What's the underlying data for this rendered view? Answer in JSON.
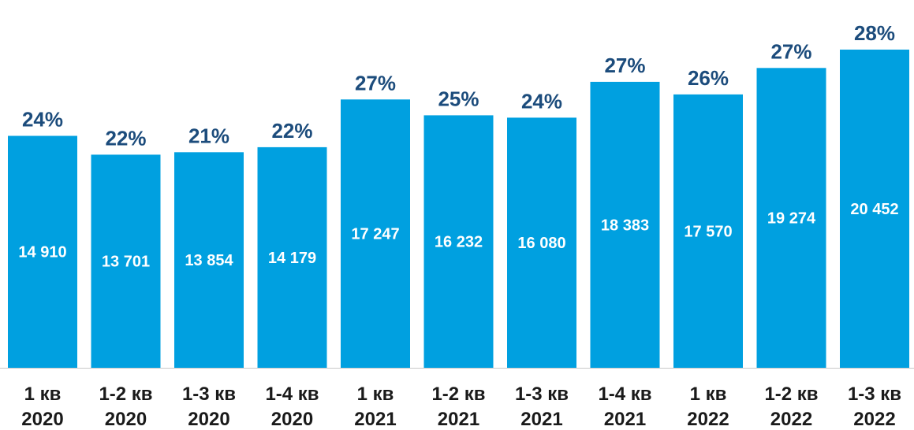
{
  "chart_data": {
    "type": "bar",
    "categories": [
      [
        "1 кв",
        "2020"
      ],
      [
        "1-2 кв",
        "2020"
      ],
      [
        "1-3 кв",
        "2020"
      ],
      [
        "1-4 кв",
        "2020"
      ],
      [
        "1 кв",
        "2021"
      ],
      [
        "1-2 кв",
        "2021"
      ],
      [
        "1-3 кв",
        "2021"
      ],
      [
        "1-4 кв",
        "2021"
      ],
      [
        "1 кв",
        "2022"
      ],
      [
        "1-2 кв",
        "2022"
      ],
      [
        "1-3 кв",
        "2022"
      ]
    ],
    "values": [
      14910,
      13701,
      13854,
      14179,
      17247,
      16232,
      16080,
      18383,
      17570,
      19274,
      20452
    ],
    "value_labels": [
      "14 910",
      "13 701",
      "13 854",
      "14 179",
      "17 247",
      "16 232",
      "16 080",
      "18 383",
      "17 570",
      "19 274",
      "20 452"
    ],
    "percent_labels": [
      "24%",
      "22%",
      "21%",
      "22%",
      "27%",
      "25%",
      "24%",
      "27%",
      "26%",
      "27%",
      "28%"
    ],
    "title": "",
    "xlabel": "",
    "ylabel": "",
    "ylim": [
      0,
      20452
    ],
    "grid": false,
    "legend": "none",
    "colors": {
      "bar": "#00a0e0",
      "percent_text": "#1c4c7c",
      "value_text": "#ffffff",
      "category_text": "#1a1a1a",
      "baseline": "#c8c8c8"
    }
  }
}
